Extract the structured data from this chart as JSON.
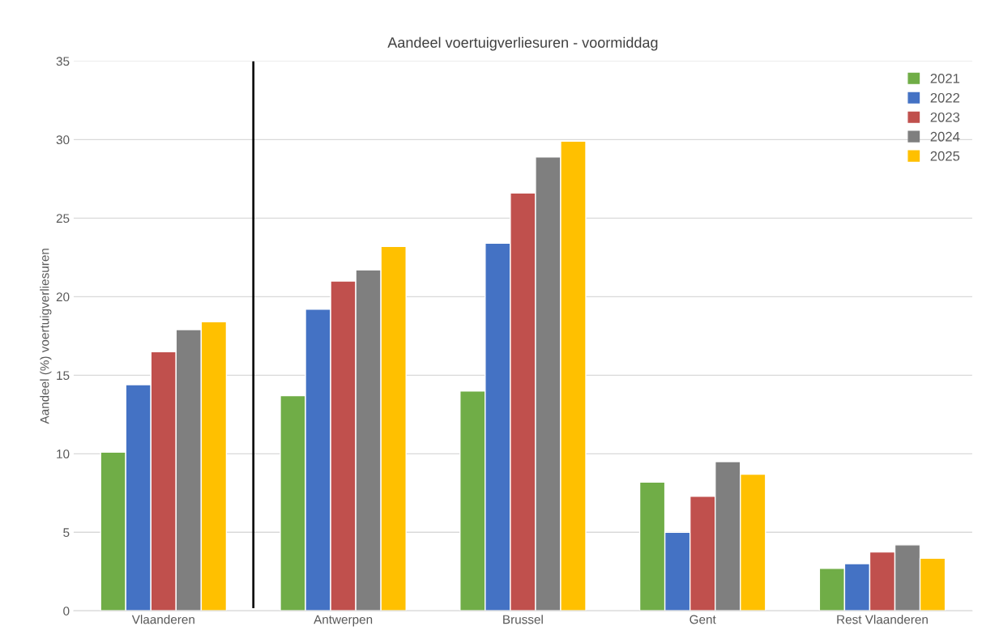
{
  "chart_data": {
    "type": "bar",
    "title": "Aandeel voertuigverliesuren - voormiddag",
    "ylabel": "Aandeel (%) voertuigverliesuren",
    "categories": [
      "Vlaanderen",
      "Antwerpen",
      "Brussel",
      "Gent",
      "Rest Vlaanderen"
    ],
    "series": [
      {
        "name": "2021",
        "color": "#70ad47",
        "values": [
          10.1,
          13.7,
          14.0,
          8.2,
          2.7
        ]
      },
      {
        "name": "2022",
        "color": "#4472c4",
        "values": [
          14.4,
          19.2,
          23.4,
          5.0,
          3.0
        ]
      },
      {
        "name": "2023",
        "color": "#c0504d",
        "values": [
          16.5,
          21.0,
          26.6,
          7.3,
          3.75
        ]
      },
      {
        "name": "2024",
        "color": "#7f7f7f",
        "values": [
          17.9,
          21.7,
          28.9,
          9.5,
          4.2
        ]
      },
      {
        "name": "2025",
        "color": "#ffc000",
        "values": [
          18.4,
          23.2,
          29.9,
          8.7,
          3.35
        ]
      }
    ],
    "ylim": [
      0,
      35
    ],
    "yticks": [
      0,
      5,
      10,
      15,
      20,
      25,
      30,
      35
    ],
    "grid": "y",
    "legend": "top right"
  }
}
